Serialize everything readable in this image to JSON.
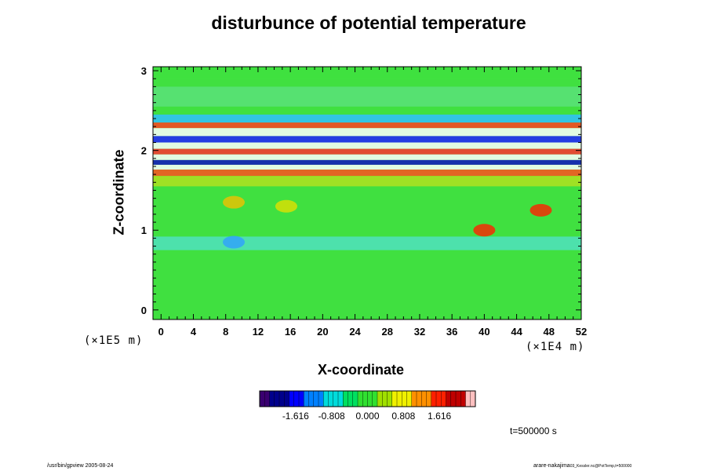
{
  "chart_data": {
    "type": "heatmap",
    "title": "disturbunce of potential temperature",
    "xlabel": "X-coordinate",
    "ylabel": "Z-coordinate",
    "x_unit": "(×1E4 m)",
    "z_unit": "(×1E5 m)",
    "xlim": [
      -1,
      52
    ],
    "zlim": [
      -0.12,
      3.05
    ],
    "x_ticks": [
      0,
      4,
      8,
      12,
      16,
      20,
      24,
      28,
      32,
      36,
      40,
      44,
      48,
      52
    ],
    "z_ticks": [
      0,
      1,
      2,
      3
    ],
    "colorbar": {
      "range": [
        -2.424,
        2.424
      ],
      "tick_values": [
        -1.616,
        -0.808,
        0.0,
        0.808,
        1.616
      ],
      "tick_labels": [
        "-1.616",
        "-0.808",
        "0.000",
        "0.808",
        "1.616"
      ],
      "colors": [
        "#3a0070",
        "#00008c",
        "#0000ff",
        "#0080ff",
        "#00dcdc",
        "#00e060",
        "#30e030",
        "#a0e000",
        "#f0f000",
        "#ff9000",
        "#ff2000",
        "#c00000",
        "#ffc0c0"
      ]
    },
    "field": {
      "background": "#40e040",
      "bands": [
        {
          "z": [
            2.9,
            3.05
          ],
          "color": "#40e040"
        },
        {
          "z": [
            2.55,
            2.8
          ],
          "color": "#5ae07a"
        },
        {
          "z": [
            2.35,
            2.45
          ],
          "color": "#30c0ff"
        },
        {
          "z": [
            2.28,
            2.35
          ],
          "color": "#ff4020"
        },
        {
          "z": [
            2.18,
            2.28
          ],
          "color": "#ffffff"
        },
        {
          "z": [
            2.1,
            2.18
          ],
          "color": "#2020ff"
        },
        {
          "z": [
            2.02,
            2.1
          ],
          "color": "#ffffff"
        },
        {
          "z": [
            1.95,
            2.02
          ],
          "color": "#ff3030"
        },
        {
          "z": [
            1.88,
            1.95
          ],
          "color": "#ffffff"
        },
        {
          "z": [
            1.82,
            1.88
          ],
          "color": "#1010c0"
        },
        {
          "z": [
            1.76,
            1.82
          ],
          "color": "#ffffff"
        },
        {
          "z": [
            1.68,
            1.76
          ],
          "color": "#ff5020"
        },
        {
          "z": [
            1.55,
            1.68
          ],
          "color": "#b0e020"
        },
        {
          "z": [
            0.75,
            0.92
          ],
          "color": "#50e0c0"
        }
      ],
      "spots": [
        {
          "x": 47,
          "z": 1.25,
          "color": "#ff2000"
        },
        {
          "x": 40,
          "z": 1.0,
          "color": "#ff2000"
        },
        {
          "x": 9,
          "z": 1.35,
          "color": "#f0c000"
        },
        {
          "x": 15.5,
          "z": 1.3,
          "color": "#e0e000"
        },
        {
          "x": 9,
          "z": 0.85,
          "color": "#30a0ff"
        }
      ]
    },
    "annotation": "t=500000 s"
  },
  "footer": {
    "left": "/usr/bin/gpview 2005-08-24",
    "right_main": "arare-nakajima",
    "right_small": "03_Kessler.nc@PotTemp,t=500000"
  }
}
